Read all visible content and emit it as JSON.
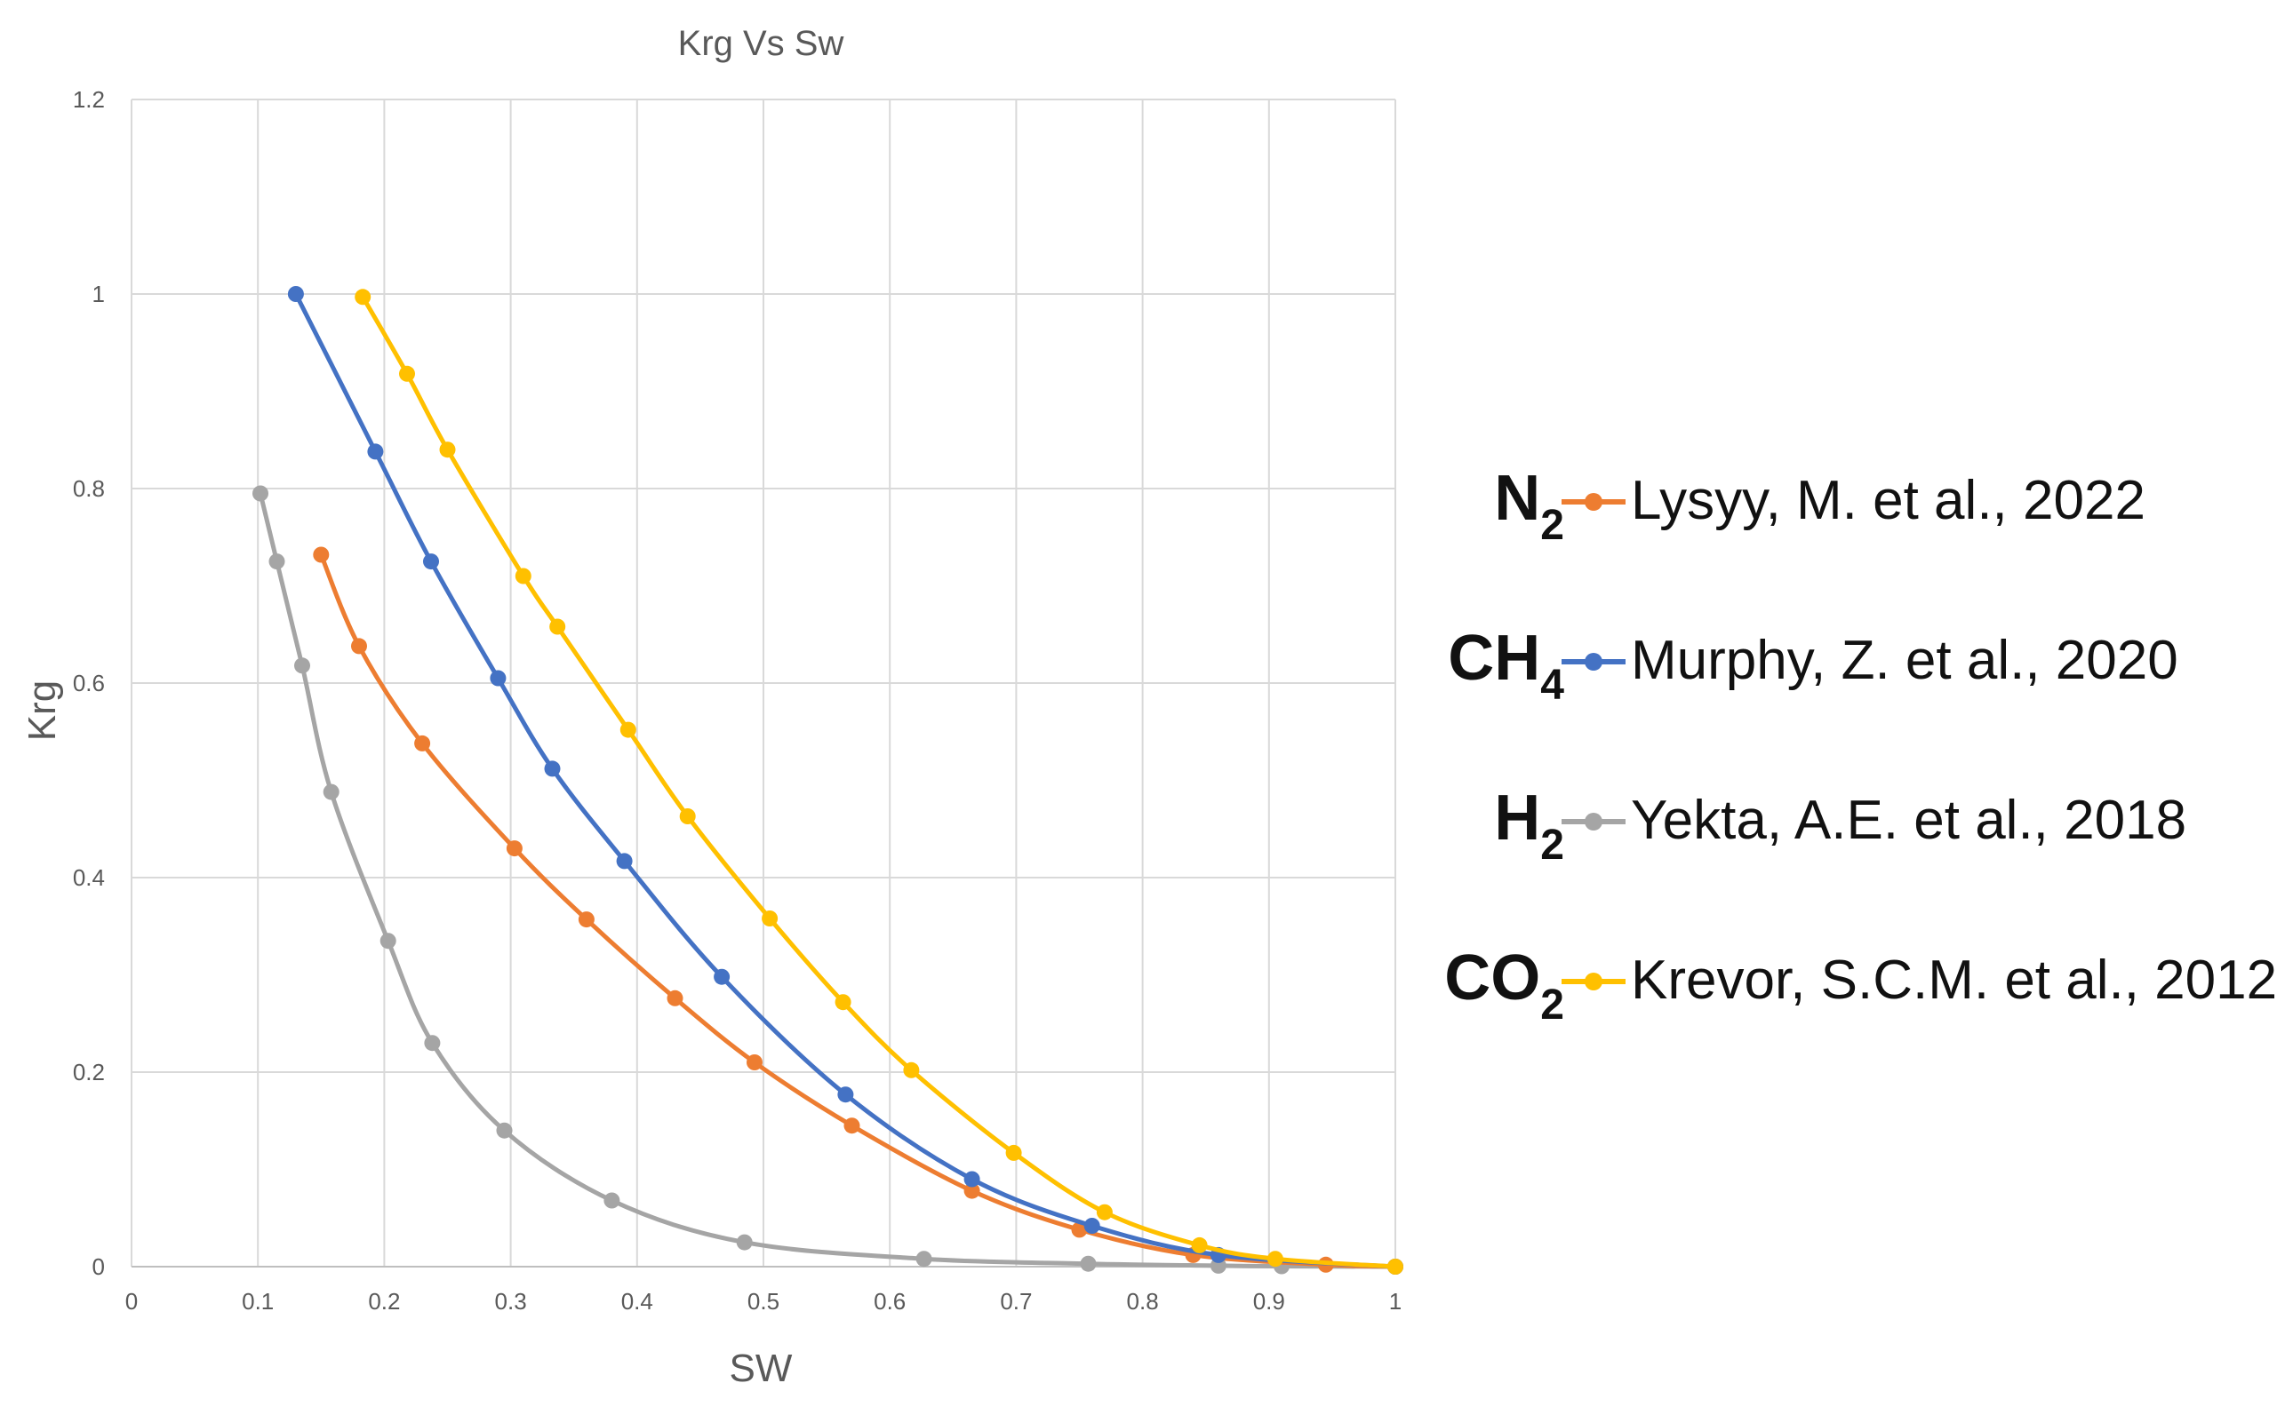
{
  "chart_data": {
    "type": "line",
    "title": "Krg Vs Sw",
    "xlabel": "SW",
    "ylabel": "Krg",
    "xlim": [
      0,
      1
    ],
    "ylim": [
      0,
      1.2
    ],
    "xticks": [
      "0",
      "0.1",
      "0.2",
      "0.3",
      "0.4",
      "0.5",
      "0.6",
      "0.7",
      "0.8",
      "0.9",
      "1"
    ],
    "yticks": [
      "0",
      "0.2",
      "0.4",
      "0.6",
      "0.8",
      "1",
      "1.2"
    ],
    "grid": true,
    "legend_position": "right",
    "series": [
      {
        "name": "Lysyy, M. et al., 2022",
        "gas": "N",
        "gas_sub": "2",
        "color": "#ED7D31",
        "x": [
          0.15,
          0.18,
          0.23,
          0.303,
          0.36,
          0.43,
          0.493,
          0.57,
          0.665,
          0.75,
          0.84,
          0.945,
          1.0
        ],
        "y": [
          0.732,
          0.638,
          0.538,
          0.43,
          0.357,
          0.276,
          0.21,
          0.145,
          0.078,
          0.038,
          0.012,
          0.002,
          0.0
        ]
      },
      {
        "name": "Murphy, Z. et al., 2020",
        "gas": "CH",
        "gas_sub": "4",
        "color": "#4472C4",
        "x": [
          0.13,
          0.193,
          0.237,
          0.29,
          0.333,
          0.39,
          0.467,
          0.565,
          0.665,
          0.76,
          0.86,
          1.0
        ],
        "y": [
          1.0,
          0.838,
          0.725,
          0.605,
          0.512,
          0.417,
          0.298,
          0.177,
          0.09,
          0.042,
          0.012,
          0.0
        ]
      },
      {
        "name": "Yekta, A.E. et al., 2018",
        "gas": "H",
        "gas_sub": "2",
        "color": "#A5A5A5",
        "x": [
          0.102,
          0.115,
          0.135,
          0.158,
          0.203,
          0.238,
          0.295,
          0.38,
          0.485,
          0.627,
          0.757,
          0.86,
          0.91,
          1.0
        ],
        "y": [
          0.795,
          0.725,
          0.618,
          0.488,
          0.335,
          0.23,
          0.14,
          0.068,
          0.025,
          0.008,
          0.003,
          0.001,
          0.0005,
          0.0
        ]
      },
      {
        "name": "Krevor, S.C.M. et al., 2012",
        "gas": "CO",
        "gas_sub": "2",
        "color": "#FFC000",
        "x": [
          0.183,
          0.218,
          0.25,
          0.31,
          0.337,
          0.393,
          0.44,
          0.505,
          0.563,
          0.617,
          0.698,
          0.77,
          0.845,
          0.905,
          1.0
        ],
        "y": [
          0.997,
          0.918,
          0.84,
          0.71,
          0.658,
          0.552,
          0.463,
          0.358,
          0.272,
          0.202,
          0.117,
          0.056,
          0.022,
          0.008,
          0.0
        ]
      }
    ]
  }
}
